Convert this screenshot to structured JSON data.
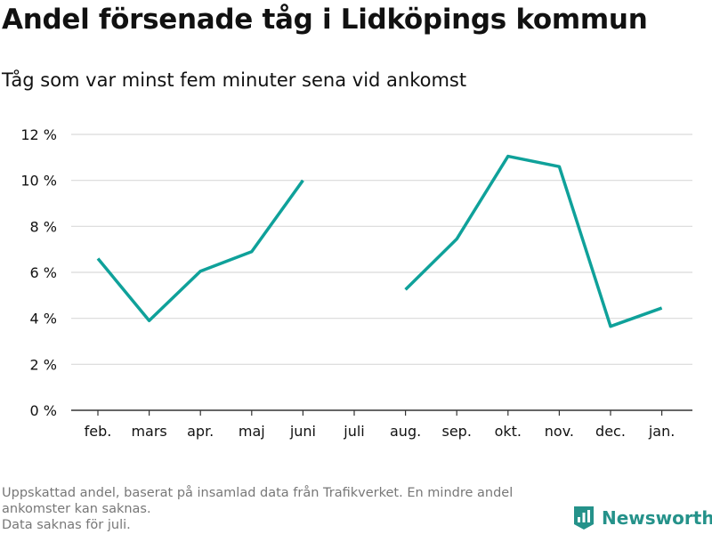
{
  "header": {
    "title": "Andel försenade tåg i Lidköpings kommun",
    "subtitle": "Tåg som var minst fem minuter sena vid ankomst"
  },
  "footer": {
    "note_line1": "Uppskattad andel, baserat på insamlad data från Trafikverket. En mindre andel ankomster kan saknas.",
    "note_line2": "Data saknas för juli.",
    "brand": "Newsworthy"
  },
  "colors": {
    "line": "#0fa19a",
    "grid": "#d9d9d9",
    "axis": "#333333",
    "brand": "#25928a"
  },
  "chart_data": {
    "type": "line",
    "categories": [
      "feb.",
      "mars",
      "apr.",
      "maj",
      "juni",
      "juli",
      "aug.",
      "sep.",
      "okt.",
      "nov.",
      "dec.",
      "jan."
    ],
    "series": [
      {
        "values": [
          6.6,
          3.9,
          6.05,
          6.9,
          10.0,
          null,
          5.25,
          7.45,
          11.05,
          10.6,
          3.65,
          4.45
        ]
      }
    ],
    "ylim": [
      0,
      12
    ],
    "yticks": [
      0,
      2,
      4,
      6,
      8,
      10,
      12
    ],
    "ytick_suffix": " %",
    "xlabel": "",
    "ylabel": "",
    "grid": true
  }
}
